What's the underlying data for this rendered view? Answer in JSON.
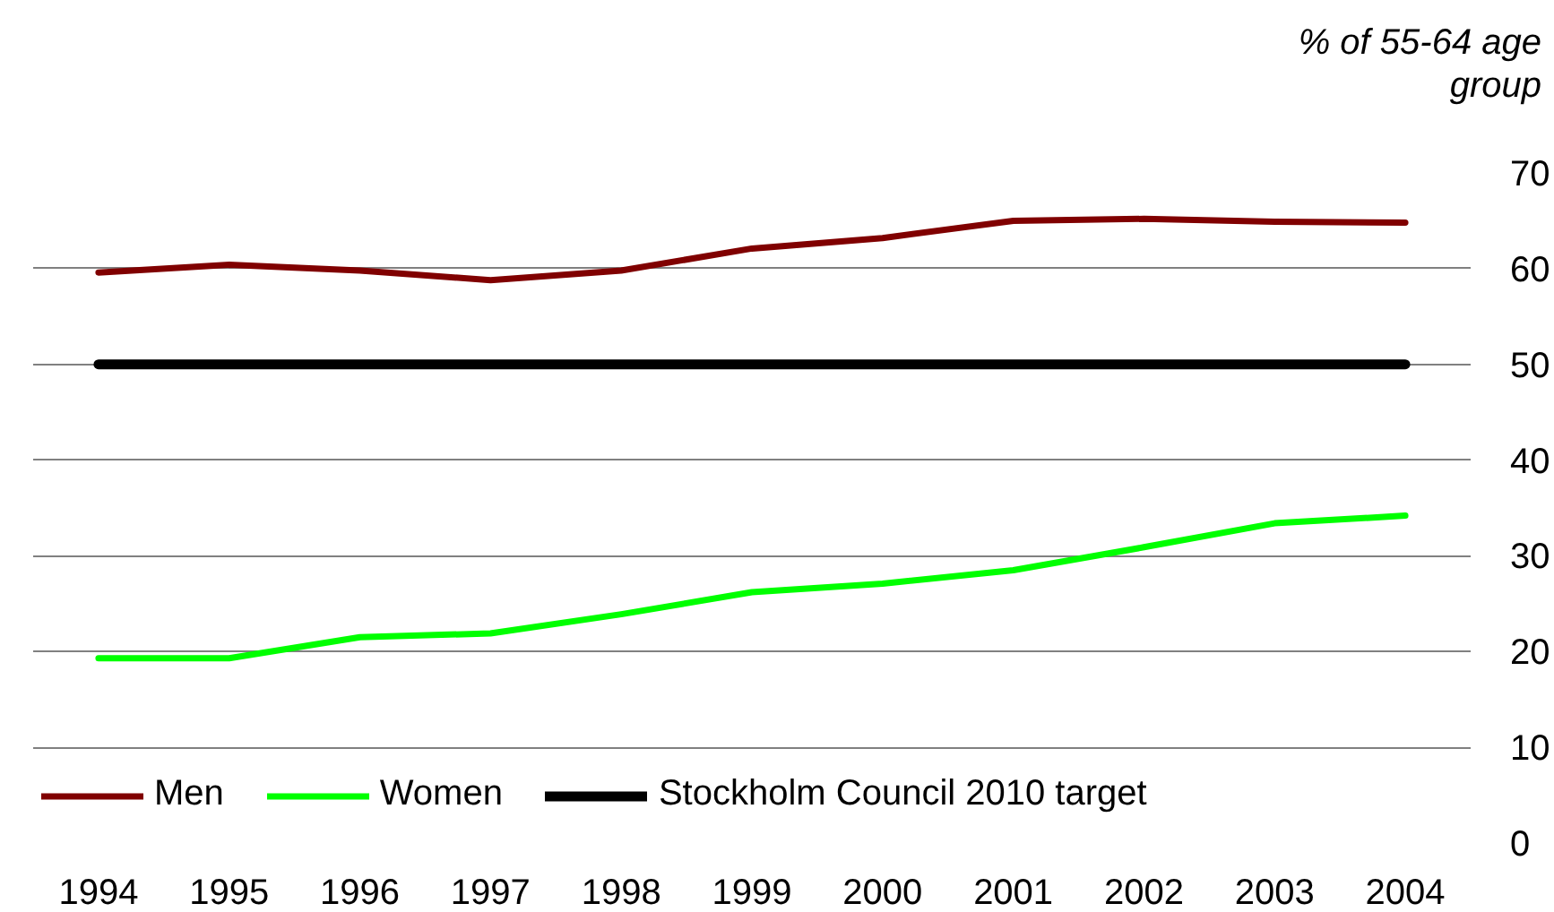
{
  "chart_data": {
    "type": "line",
    "ylabel": "% of 55-64 age group",
    "categories": [
      "1994",
      "1995",
      "1996",
      "1997",
      "1998",
      "1999",
      "2000",
      "2001",
      "2002",
      "2003",
      "2004"
    ],
    "series": [
      {
        "name": "Men",
        "color": "#800000",
        "values": [
          59.6,
          60.4,
          59.8,
          58.8,
          59.8,
          62.1,
          63.2,
          65.0,
          65.2,
          64.9,
          64.8
        ]
      },
      {
        "name": "Women",
        "color": "#00ff00",
        "values": [
          19.3,
          19.3,
          21.5,
          21.9,
          23.9,
          26.2,
          27.1,
          28.5,
          30.9,
          33.4,
          34.2
        ]
      },
      {
        "name": "Stockholm Council 2010 target",
        "color": "#000000",
        "values": [
          50,
          50,
          50,
          50,
          50,
          50,
          50,
          50,
          50,
          50,
          50
        ]
      }
    ],
    "ylim": [
      0,
      70
    ],
    "yticks": [
      0,
      10,
      20,
      30,
      40,
      50,
      60,
      70
    ],
    "grid": "y",
    "legend": "bottom left",
    "line_style": "solid"
  }
}
